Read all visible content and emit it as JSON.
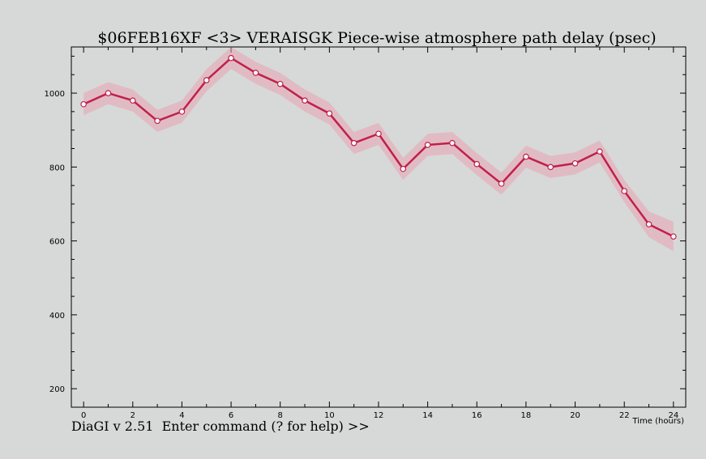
{
  "command_prompt": "DiaGI v 2.51  Enter command (? for help) >>",
  "colors": {
    "background": "#d7d9d8",
    "line": "#c0204a",
    "error_band": "#e9a3b4",
    "marker_fill": "#ffffff"
  },
  "chart_data": {
    "type": "line",
    "title": "$06FEB16XF <3>  VERAISGK  Piece-wise atmosphere path delay (psec)",
    "xlabel": "Time (hours)",
    "ylabel": "",
    "xlim": [
      -0.5,
      24.5
    ],
    "ylim": [
      150,
      1125
    ],
    "xticks": [
      0,
      2,
      4,
      6,
      8,
      10,
      12,
      14,
      16,
      18,
      20,
      22,
      24
    ],
    "yticks": [
      200,
      400,
      600,
      800,
      1000
    ],
    "grid": false,
    "series": [
      {
        "x": [
          0,
          1,
          2,
          3,
          4,
          5,
          6,
          7,
          8,
          9,
          10,
          11,
          12,
          13,
          14,
          15,
          16,
          17,
          18,
          19,
          20,
          21,
          22,
          23,
          24
        ],
        "values": [
          970,
          1000,
          980,
          925,
          950,
          1035,
          1095,
          1055,
          1025,
          980,
          945,
          865,
          890,
          795,
          860,
          865,
          808,
          755,
          828,
          800,
          810,
          842,
          735,
          645,
          612
        ],
        "error": [
          30,
          30,
          30,
          30,
          30,
          30,
          30,
          30,
          30,
          30,
          30,
          30,
          30,
          30,
          30,
          30,
          30,
          30,
          30,
          30,
          30,
          30,
          30,
          35,
          40
        ]
      }
    ]
  }
}
